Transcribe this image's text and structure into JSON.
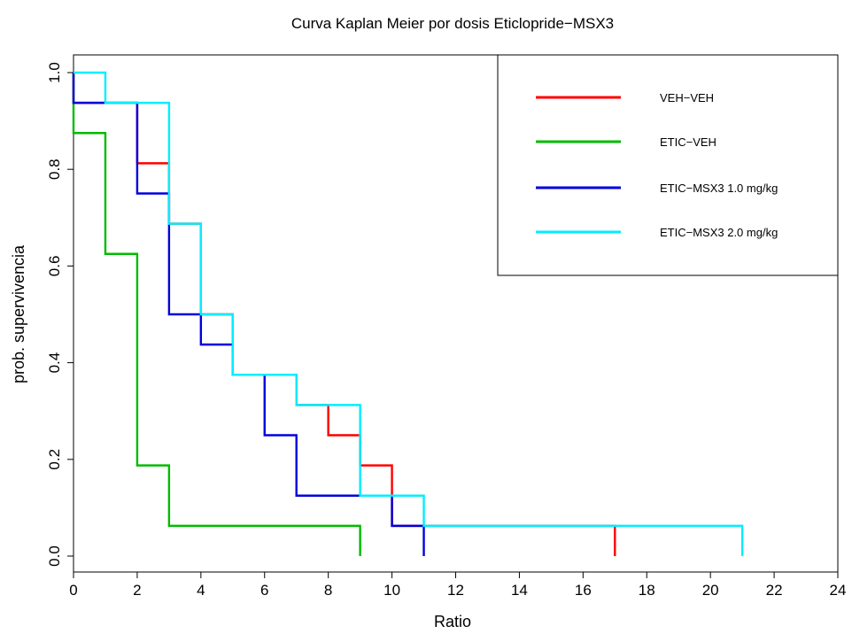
{
  "chart_data": {
    "type": "line",
    "subtype": "kaplan-meier-step",
    "title": "Curva Kaplan Meier por dosis Eticlopride−MSX3",
    "xlabel": "Ratio",
    "ylabel": "prob. supervivencia",
    "xlim": [
      0,
      24
    ],
    "ylim": [
      0,
      1
    ],
    "x_ticks": [
      0,
      2,
      4,
      6,
      8,
      10,
      12,
      14,
      16,
      18,
      20,
      22,
      24
    ],
    "x_tick_labels": [
      "0",
      "2",
      "4",
      "6",
      "8",
      "10",
      "12",
      "14",
      "16",
      "18",
      "20",
      "22",
      "24"
    ],
    "y_ticks": [
      0,
      0.2,
      0.4,
      0.6,
      0.8,
      1.0
    ],
    "y_tick_labels": [
      "0.0",
      "0.2",
      "0.4",
      "0.6",
      "0.8",
      "1.0"
    ],
    "grid": false,
    "legend_position": "top-right",
    "series": [
      {
        "name": "VEH−VEH",
        "color": "#ff0000",
        "times": [
          0,
          2,
          3,
          4,
          5,
          6,
          7,
          8,
          9,
          10,
          11
        ],
        "values": [
          0.9375,
          0.8125,
          0.6875,
          0.5,
          0.375,
          0.375,
          0.3125,
          0.25,
          0.1875,
          0.0625,
          0.0625
        ],
        "end_time": 17,
        "end_value": 0
      },
      {
        "name": "ETIC−VEH",
        "color": "#00bb00",
        "times": [
          0,
          1,
          2,
          3
        ],
        "values": [
          0.875,
          0.625,
          0.1875,
          0.0625
        ],
        "end_time": 9,
        "end_value": 0
      },
      {
        "name": "ETIC−MSX3 1.0 mg/kg",
        "color": "#0000dd",
        "times": [
          0,
          2,
          3,
          4,
          5,
          6,
          7,
          10
        ],
        "values": [
          0.9375,
          0.75,
          0.5,
          0.4375,
          0.375,
          0.25,
          0.125,
          0.0625
        ],
        "end_time": 11,
        "end_value": 0
      },
      {
        "name": "ETIC−MSX3 2.0 mg/kg",
        "color": "#00eeff",
        "times": [
          0,
          1,
          3,
          4,
          5,
          7,
          9,
          11
        ],
        "values": [
          1.0,
          0.9375,
          0.6875,
          0.5,
          0.375,
          0.3125,
          0.125,
          0.0625
        ],
        "end_time": 21,
        "end_value": 0
      }
    ]
  }
}
